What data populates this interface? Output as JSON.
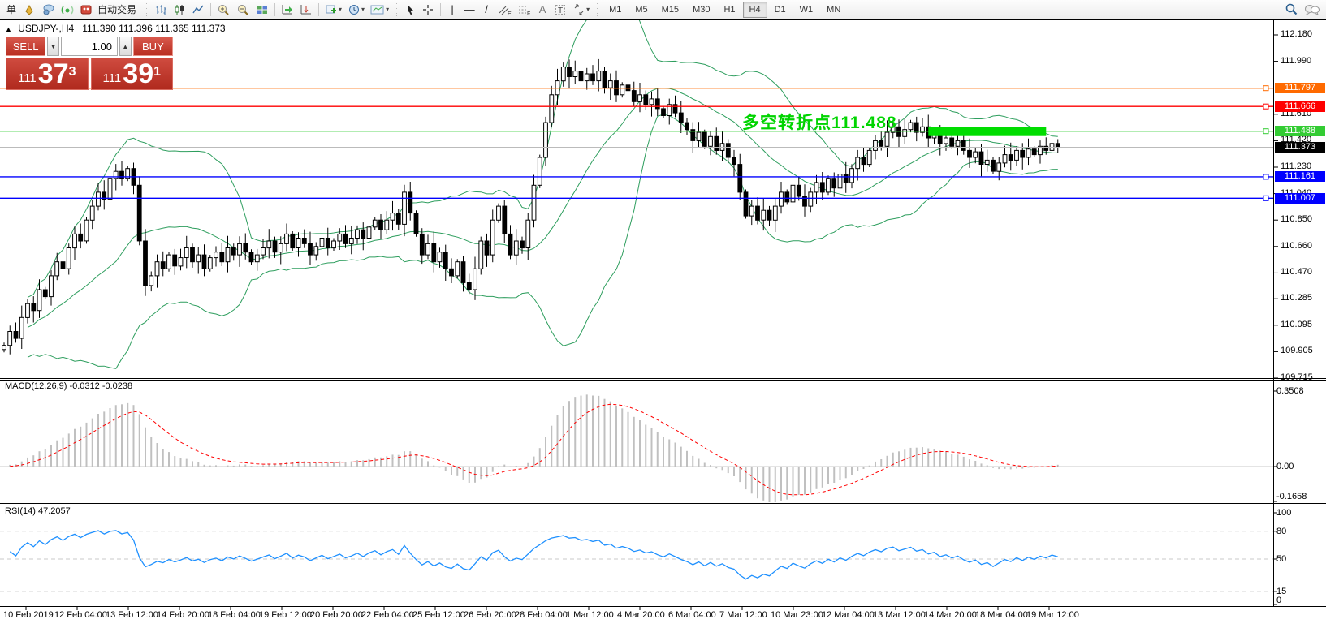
{
  "toolbar": {
    "new_order": "单",
    "autotrading": "自动交易",
    "tool_letters": {
      "channel": "E",
      "fibo": "F",
      "text": "A",
      "label": "T"
    },
    "timeframes": [
      "M1",
      "M5",
      "M15",
      "M30",
      "H1",
      "H4",
      "D1",
      "W1",
      "MN"
    ],
    "active_timeframe": "H4"
  },
  "chart_header": {
    "collapse_icon": "▲",
    "symbol": "USDJPY-,H4",
    "ohlc": "111.390 111.396 111.365 111.373"
  },
  "trade_panel": {
    "sell_label": "SELL",
    "buy_label": "BUY",
    "volume": "1.00",
    "sell_price": {
      "prefix": "111",
      "big": "37",
      "sup": "3"
    },
    "buy_price": {
      "prefix": "111",
      "big": "39",
      "sup": "1"
    }
  },
  "chart_data": {
    "type": "candlestick",
    "symbol": "USDJPY",
    "period": "H4",
    "price_axis_ticks": [
      112.18,
      111.99,
      111.61,
      111.42,
      111.23,
      111.04,
      110.85,
      110.66,
      110.47,
      110.285,
      110.095,
      109.905,
      109.715
    ],
    "time_labels": [
      "10 Feb 2019",
      "12 Feb 04:00",
      "13 Feb 12:00",
      "14 Feb 20:00",
      "18 Feb 04:00",
      "19 Feb 12:00",
      "20 Feb 20:00",
      "22 Feb 04:00",
      "25 Feb 12:00",
      "26 Feb 20:00",
      "28 Feb 04:00",
      "1 Mar 12:00",
      "4 Mar 20:00",
      "6 Mar 04:00",
      "7 Mar 12:00",
      "10 Mar 23:00",
      "12 Mar 04:00",
      "13 Mar 12:00",
      "14 Mar 20:00",
      "18 Mar 04:00",
      "19 Mar 12:00"
    ],
    "closes": [
      109.95,
      110.05,
      110.0,
      110.15,
      110.25,
      110.2,
      110.35,
      110.3,
      110.45,
      110.55,
      110.5,
      110.65,
      110.75,
      110.7,
      110.85,
      110.95,
      111.05,
      111.0,
      111.15,
      111.2,
      111.15,
      111.22,
      111.1,
      110.7,
      110.38,
      110.45,
      110.55,
      110.5,
      110.6,
      110.52,
      110.58,
      110.65,
      110.55,
      110.6,
      110.5,
      110.58,
      110.62,
      110.55,
      110.65,
      110.6,
      110.68,
      110.62,
      110.55,
      110.6,
      110.65,
      110.7,
      110.62,
      110.68,
      110.75,
      110.65,
      110.72,
      110.68,
      110.6,
      110.66,
      110.72,
      110.65,
      110.7,
      110.75,
      110.68,
      110.72,
      110.78,
      110.72,
      110.8,
      110.85,
      110.78,
      110.85,
      110.9,
      110.82,
      111.05,
      110.9,
      110.75,
      110.6,
      110.68,
      110.55,
      110.62,
      110.5,
      110.45,
      110.55,
      110.4,
      110.35,
      110.5,
      110.7,
      110.6,
      110.85,
      110.95,
      110.75,
      110.6,
      110.7,
      110.65,
      110.85,
      111.1,
      111.3,
      111.55,
      111.75,
      111.85,
      111.95,
      111.88,
      111.92,
      111.85,
      111.9,
      111.85,
      111.92,
      111.8,
      111.85,
      111.75,
      111.82,
      111.78,
      111.7,
      111.75,
      111.68,
      111.72,
      111.65,
      111.6,
      111.68,
      111.62,
      111.55,
      111.5,
      111.42,
      111.48,
      111.38,
      111.45,
      111.35,
      111.4,
      111.3,
      111.25,
      111.05,
      110.88,
      110.95,
      110.85,
      110.92,
      110.85,
      110.95,
      111.05,
      110.98,
      111.1,
      111.02,
      110.95,
      111.05,
      111.12,
      111.05,
      111.15,
      111.08,
      111.18,
      111.12,
      111.22,
      111.3,
      111.25,
      111.35,
      111.42,
      111.38,
      111.48,
      111.52,
      111.45,
      111.5,
      111.55,
      111.48,
      111.52,
      111.44,
      111.48,
      111.4,
      111.44,
      111.38,
      111.42,
      111.35,
      111.3,
      111.34,
      111.25,
      111.28,
      111.2,
      111.26,
      111.32,
      111.28,
      111.35,
      111.3,
      111.36,
      111.32,
      111.38,
      111.35,
      111.4,
      111.373
    ],
    "indicators": {
      "bollinger": {
        "period": 20,
        "deviation": 2,
        "color": "#2e9e5e"
      },
      "macd": {
        "label": "MACD(12,26,9) -0.0312 -0.0238",
        "params": [
          12,
          26,
          9
        ],
        "values": [
          -0.0312,
          -0.0238
        ],
        "axis_labels": [
          0.3508,
          0.0,
          -0.1658
        ],
        "hist_color": "#c0c0c0",
        "signal_color": "#ff0000"
      },
      "rsi": {
        "label": "RSI(14) 47.2057",
        "period": 14,
        "value": 47.2057,
        "axis_labels": [
          100,
          80,
          50,
          15,
          0
        ],
        "levels": [
          80,
          50,
          15
        ],
        "line_color": "#1e90ff"
      }
    },
    "levels": [
      {
        "price": 111.797,
        "color": "#ff6a00"
      },
      {
        "price": 111.666,
        "color": "#ff0000"
      },
      {
        "price": 111.488,
        "color": "#33cc33"
      },
      {
        "price": 111.161,
        "color": "#0000ff"
      },
      {
        "price": 111.007,
        "color": "#0000ff"
      }
    ],
    "current_price": {
      "value": 111.373,
      "line_color": "#bbbbbb",
      "tag_bg": "#000000"
    },
    "highlight_zone": {
      "price": 111.488,
      "start_index": 157,
      "end_index": 177,
      "color": "#00dd00"
    },
    "annotation": {
      "text": "多空转折点111.488",
      "color": "#00d400"
    }
  }
}
